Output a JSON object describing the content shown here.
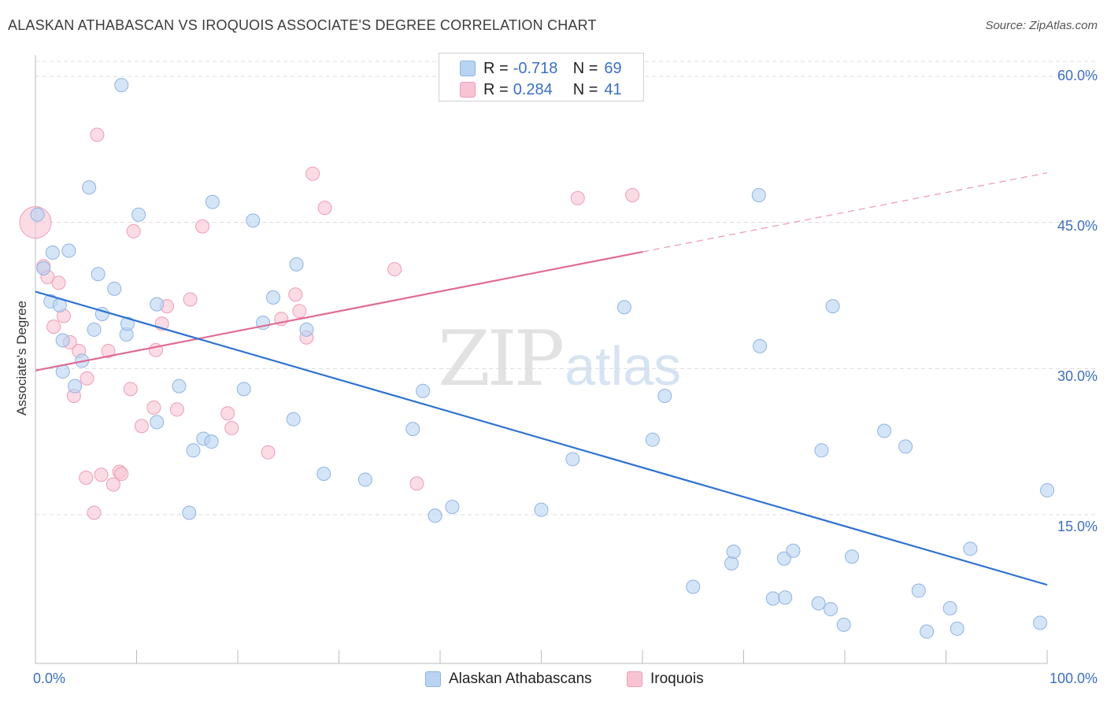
{
  "title": "ALASKAN ATHABASCAN VS IROQUOIS ASSOCIATE'S DEGREE CORRELATION CHART",
  "source": "Source: ZipAtlas.com",
  "watermark": {
    "zip": "ZIP",
    "atlas": "atlas"
  },
  "colors": {
    "blue_fill": "#b9d3f3",
    "blue_stroke": "#8fb3e3",
    "blue_line": "#2f73d0",
    "pink_fill": "#f8c4d4",
    "pink_stroke": "#ee9cb6",
    "pink_line": "#e06b92",
    "axis_text": "#3b6fc4",
    "grid": "#dcdcdc"
  },
  "legend": {
    "rows": [
      {
        "r_label": "R =",
        "r_value": "-0.718",
        "n_label": "N =",
        "n_value": "69"
      },
      {
        "r_label": "R =",
        "r_value": "0.284",
        "n_label": "N =",
        "n_value": "41"
      }
    ]
  },
  "bottom_legend": [
    "Alaskan Athabascans",
    "Iroquois"
  ],
  "chart_data": {
    "type": "scatter",
    "title": "ALASKAN ATHABASCAN VS IROQUOIS ASSOCIATE'S DEGREE CORRELATION CHART",
    "xlabel": "",
    "ylabel": "Associate's Degree",
    "xlim": [
      0,
      100
    ],
    "ylim": [
      0,
      62
    ],
    "x_tick_labels": [
      "0.0%",
      "100.0%"
    ],
    "y_ticks": [
      15,
      30,
      45,
      60
    ],
    "y_tick_labels": [
      "15.0%",
      "30.0%",
      "45.0%",
      "60.0%"
    ],
    "grid": "horizontal dashed",
    "legend_placement": "top-center",
    "series": [
      {
        "name": "Alaskan Athabascans",
        "r": -0.718,
        "n": 69,
        "trend": {
          "x": [
            0,
            100
          ],
          "y": [
            37.9,
            7.8
          ],
          "solid_to": 100
        },
        "points": [
          [
            0.2,
            45.8
          ],
          [
            0.8,
            40.3
          ],
          [
            1.5,
            36.9
          ],
          [
            1.7,
            41.9
          ],
          [
            2.4,
            36.5
          ],
          [
            2.7,
            32.9
          ],
          [
            2.7,
            29.7
          ],
          [
            3.3,
            42.1
          ],
          [
            3.9,
            28.2
          ],
          [
            4.6,
            30.8
          ],
          [
            5.3,
            48.6
          ],
          [
            5.8,
            34.0
          ],
          [
            6.2,
            39.7
          ],
          [
            6.6,
            35.6
          ],
          [
            7.8,
            38.2
          ],
          [
            8.5,
            59.1
          ],
          [
            9.0,
            33.5
          ],
          [
            9.1,
            34.6
          ],
          [
            10.2,
            45.8
          ],
          [
            12.0,
            24.5
          ],
          [
            12.0,
            36.6
          ],
          [
            14.2,
            28.2
          ],
          [
            15.2,
            15.2
          ],
          [
            15.6,
            21.6
          ],
          [
            16.6,
            22.8
          ],
          [
            17.4,
            22.5
          ],
          [
            17.5,
            47.1
          ],
          [
            20.6,
            27.9
          ],
          [
            21.5,
            45.2
          ],
          [
            22.5,
            34.7
          ],
          [
            23.5,
            37.3
          ],
          [
            25.5,
            24.8
          ],
          [
            25.8,
            40.7
          ],
          [
            26.8,
            34.0
          ],
          [
            28.5,
            19.2
          ],
          [
            32.6,
            18.6
          ],
          [
            37.3,
            23.8
          ],
          [
            38.3,
            27.7
          ],
          [
            39.5,
            14.9
          ],
          [
            41.2,
            15.8
          ],
          [
            50.0,
            15.5
          ],
          [
            53.1,
            20.7
          ],
          [
            58.2,
            36.3
          ],
          [
            61.0,
            22.7
          ],
          [
            62.2,
            27.2
          ],
          [
            65.0,
            7.6
          ],
          [
            68.8,
            10.0
          ],
          [
            69.0,
            11.2
          ],
          [
            71.6,
            32.3
          ],
          [
            71.5,
            47.8
          ],
          [
            72.9,
            6.4
          ],
          [
            74.0,
            10.5
          ],
          [
            74.1,
            6.5
          ],
          [
            74.9,
            11.3
          ],
          [
            77.4,
            5.9
          ],
          [
            77.7,
            21.6
          ],
          [
            78.6,
            5.3
          ],
          [
            78.8,
            36.4
          ],
          [
            79.9,
            3.7
          ],
          [
            80.7,
            10.7
          ],
          [
            83.9,
            23.6
          ],
          [
            86.0,
            22.0
          ],
          [
            87.3,
            7.2
          ],
          [
            88.1,
            3.0
          ],
          [
            90.4,
            5.4
          ],
          [
            91.1,
            3.3
          ],
          [
            92.4,
            11.5
          ],
          [
            99.3,
            3.9
          ],
          [
            100.0,
            17.5
          ]
        ]
      },
      {
        "name": "Iroquois",
        "r": 0.284,
        "n": 41,
        "trend": {
          "x": [
            0,
            100
          ],
          "y": [
            29.8,
            50.1
          ],
          "solid_to": 60
        },
        "points": [
          [
            0.0,
            45.0
          ],
          [
            0.8,
            40.5
          ],
          [
            1.2,
            39.4
          ],
          [
            1.8,
            34.3
          ],
          [
            2.3,
            38.8
          ],
          [
            2.8,
            35.4
          ],
          [
            3.4,
            32.7
          ],
          [
            3.8,
            27.2
          ],
          [
            4.3,
            31.8
          ],
          [
            5.0,
            18.8
          ],
          [
            5.1,
            29.0
          ],
          [
            5.8,
            15.2
          ],
          [
            6.1,
            54.0
          ],
          [
            6.5,
            19.1
          ],
          [
            7.2,
            31.8
          ],
          [
            7.7,
            18.1
          ],
          [
            8.3,
            19.4
          ],
          [
            8.5,
            19.2
          ],
          [
            9.4,
            27.9
          ],
          [
            10.5,
            24.1
          ],
          [
            11.7,
            26.0
          ],
          [
            11.9,
            31.9
          ],
          [
            12.5,
            34.6
          ],
          [
            14.0,
            25.8
          ],
          [
            13.0,
            36.4
          ],
          [
            15.3,
            37.1
          ],
          [
            16.5,
            44.6
          ],
          [
            19.0,
            25.4
          ],
          [
            19.4,
            23.9
          ],
          [
            23.0,
            21.4
          ],
          [
            24.3,
            35.1
          ],
          [
            25.7,
            37.6
          ],
          [
            26.1,
            35.9
          ],
          [
            26.8,
            33.2
          ],
          [
            27.4,
            50.0
          ],
          [
            28.6,
            46.5
          ],
          [
            35.5,
            40.2
          ],
          [
            37.7,
            18.2
          ],
          [
            53.6,
            47.5
          ],
          [
            59.0,
            47.8
          ],
          [
            9.7,
            44.1
          ]
        ]
      }
    ]
  }
}
